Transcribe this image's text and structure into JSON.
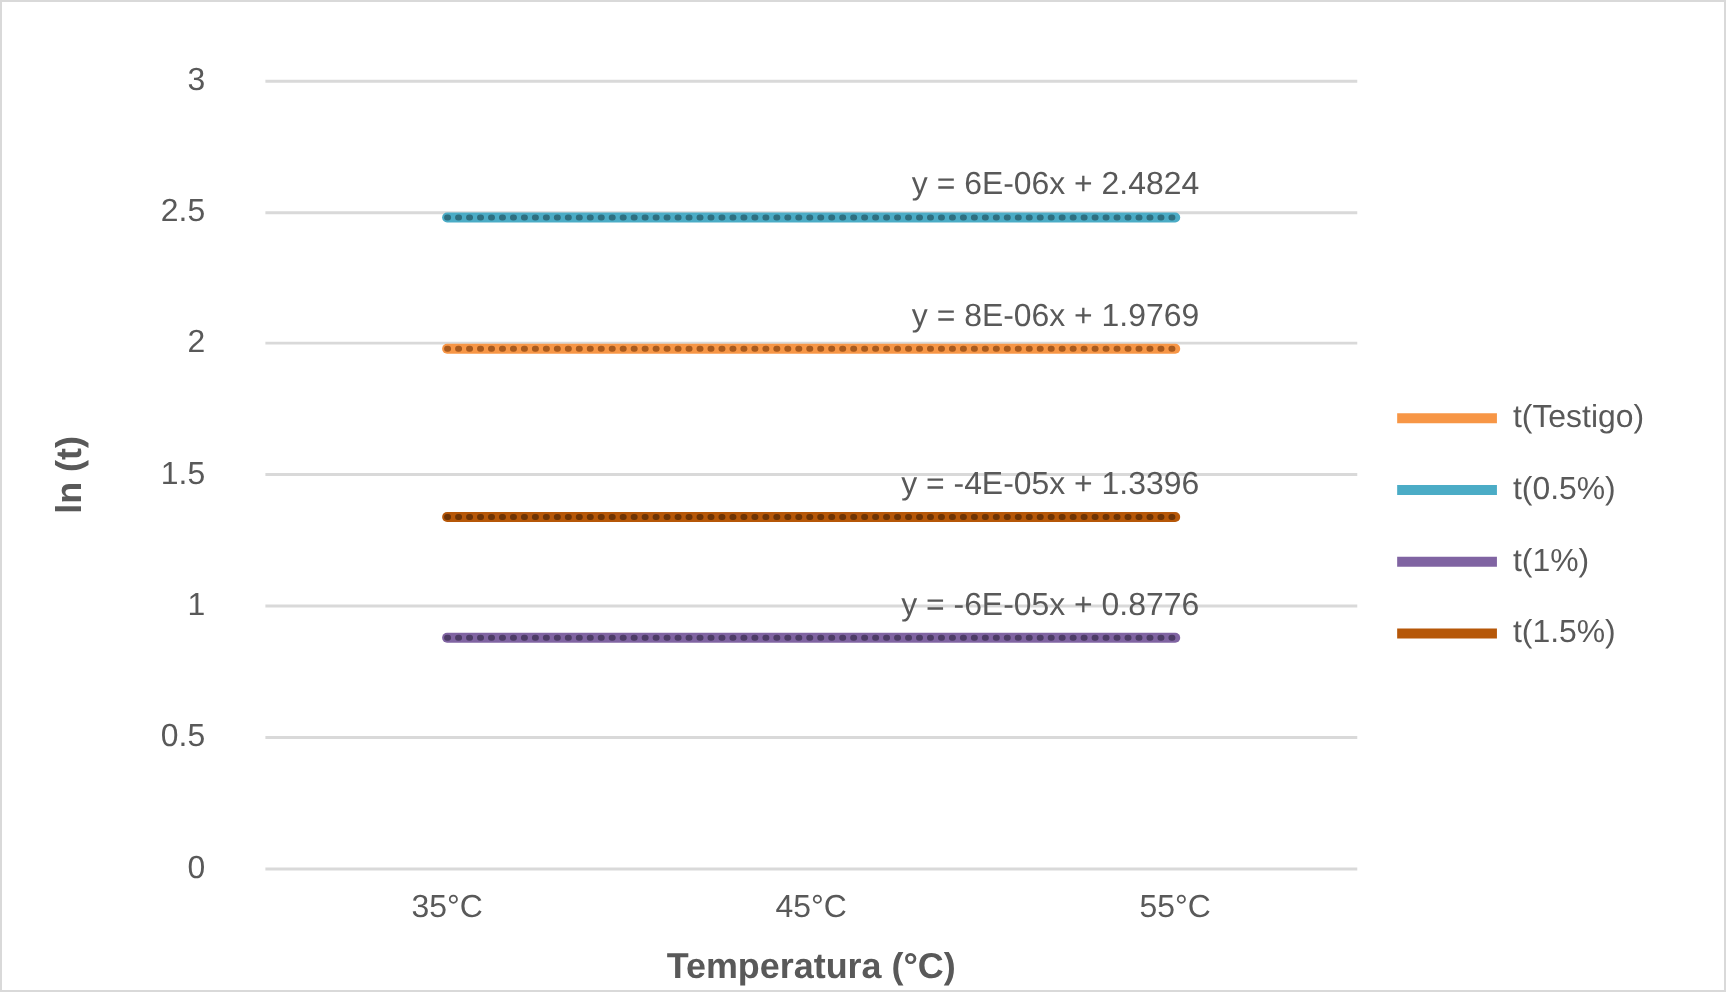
{
  "chart_data": {
    "type": "line",
    "xlabel": "Temperatura (°C)",
    "ylabel": "ln (t)",
    "categories": [
      "35°C",
      "45°C",
      "55°C"
    ],
    "series": [
      {
        "name": "t(Testigo)",
        "color": "#f79646",
        "values": [
          1.98,
          1.98,
          1.98
        ]
      },
      {
        "name": "t(0.5%)",
        "color": "#4bacc6",
        "values": [
          2.48,
          2.48,
          2.48
        ]
      },
      {
        "name": "t(1%)",
        "color": "#8064a2",
        "values": [
          0.88,
          0.88,
          0.88
        ]
      },
      {
        "name": "t(1.5%)",
        "color": "#b65708",
        "values": [
          1.34,
          1.34,
          1.34
        ]
      },
      {
        "type": "line",
        "color": "#a85a1e",
        "line_style": "dotted",
        "values": [
          1.98,
          1.98,
          1.98
        ]
      },
      {
        "type": "line",
        "color": "#2e6f80",
        "line_style": "dotted",
        "values": [
          2.48,
          2.48,
          2.48
        ]
      },
      {
        "type": "line",
        "color": "#4d3c66",
        "line_style": "dotted",
        "values": [
          0.88,
          0.88,
          0.88
        ]
      },
      {
        "type": "line",
        "color": "#6e3405",
        "line_style": "dotted",
        "values": [
          1.34,
          1.34,
          1.34
        ]
      }
    ],
    "annotations": [
      {
        "text": "y = 6E-06x + 2.4824",
        "x": "55°C",
        "y": 2.48
      },
      {
        "text": "y = 8E-06x + 1.9769",
        "x": "55°C",
        "y": 1.98
      },
      {
        "text": "y = -4E-05x + 1.3396",
        "x": "55°C",
        "y": 1.34
      },
      {
        "text": "y = -6E-05x + 0.8776",
        "x": "55°C",
        "y": 0.88
      }
    ],
    "ylim": [
      0,
      3
    ],
    "yticks": [
      0,
      0.5,
      1,
      1.5,
      2,
      2.5,
      3
    ],
    "grid": "y",
    "legend": "right",
    "marker": "none",
    "line_style": "solid"
  }
}
